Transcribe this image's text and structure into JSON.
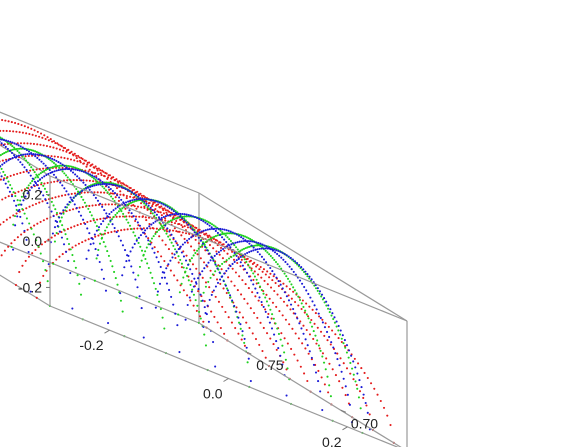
{
  "chart_data": {
    "type": "scatter",
    "title": "",
    "xlabel": "",
    "ylabel": "",
    "zlabel": "",
    "dimensions": 3,
    "xlim": [
      -0.3,
      0.3
    ],
    "ylim": [
      0.665,
      0.775
    ],
    "zlim": [
      -0.28,
      0.28
    ],
    "x_ticks": [
      {
        "value": -0.2,
        "label": "-0.2"
      },
      {
        "value": 0.0,
        "label": "0.0"
      },
      {
        "value": 0.2,
        "label": "0.2"
      }
    ],
    "y_ticks": [
      {
        "value": 0.7,
        "label": "0.70"
      },
      {
        "value": 0.75,
        "label": "0.75"
      }
    ],
    "z_ticks": [
      {
        "value": -0.2,
        "label": "-0.2"
      },
      {
        "value": 0.0,
        "label": "0.0"
      },
      {
        "value": 0.2,
        "label": "0.2"
      }
    ],
    "grid": false,
    "legend": "none",
    "series": [
      {
        "color": "#e41c1c",
        "family": "constant-y arches",
        "x_range": [
          -0.3,
          0.3
        ],
        "z_peak": 0.27,
        "y_levels": [
          0.672,
          0.683,
          0.694,
          0.705,
          0.716,
          0.727,
          0.738,
          0.749,
          0.76,
          0.771
        ]
      },
      {
        "color": "#1fd11f",
        "family": "oblique arches",
        "x_offsets": [
          -0.27,
          -0.2,
          -0.13,
          -0.06,
          0.01,
          0.08,
          0.15,
          0.22,
          0.27
        ],
        "z_peak": 0.26
      },
      {
        "color": "#1a1ad6",
        "family": "constant-x arches",
        "x_levels": [
          -0.28,
          -0.21,
          -0.15,
          -0.09,
          -0.03,
          0.03,
          0.09,
          0.15,
          0.21,
          0.26,
          0.29
        ],
        "z_peak": 0.25
      }
    ]
  }
}
